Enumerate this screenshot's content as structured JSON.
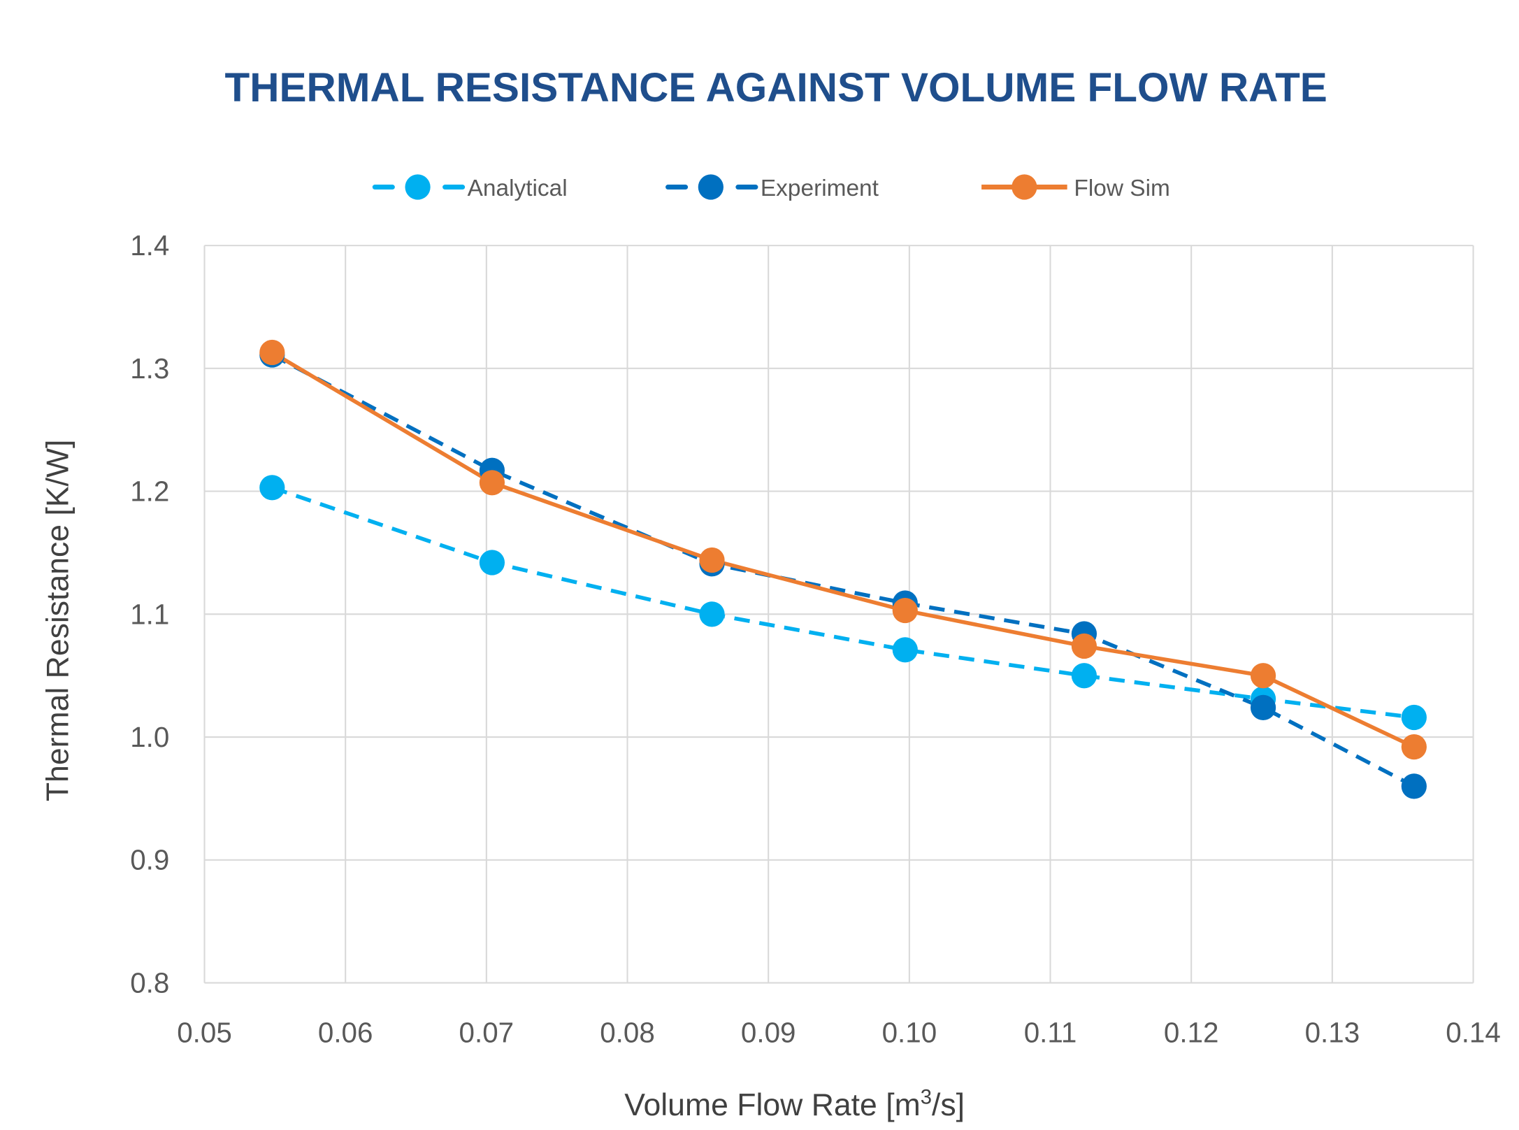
{
  "chart_data": {
    "type": "line",
    "title": "THERMAL RESISTANCE AGAINST VOLUME FLOW RATE",
    "xlabel": "Volume Flow Rate [m³/s]",
    "xlabel_parts": {
      "before": "Volume Flow Rate [m",
      "sup": "3",
      "after": "/s]"
    },
    "ylabel": "Thermal Resistance [K/W]",
    "xlim": [
      0.05,
      0.14
    ],
    "ylim": [
      0.8,
      1.4
    ],
    "xticks": [
      "0.05",
      "0.06",
      "0.07",
      "0.08",
      "0.09",
      "0.10",
      "0.11",
      "0.12",
      "0.13",
      "0.14"
    ],
    "yticks": [
      "0.8",
      "0.9",
      "1.0",
      "1.1",
      "1.2",
      "1.3",
      "1.4"
    ],
    "grid": true,
    "legend_position": "top",
    "x": [
      0.0548,
      0.0704,
      0.086,
      0.0997,
      0.1124,
      0.1251,
      0.1358
    ],
    "series": [
      {
        "name": "Analytical",
        "color": "#00B0F0",
        "dash": true,
        "values": [
          1.203,
          1.142,
          1.1,
          1.071,
          1.05,
          1.031,
          1.016
        ]
      },
      {
        "name": "Experiment",
        "color": "#0070C0",
        "dash": true,
        "values": [
          1.311,
          1.217,
          1.141,
          1.109,
          1.084,
          1.024,
          0.96
        ]
      },
      {
        "name": "Flow Sim",
        "color": "#ED7D31",
        "dash": false,
        "values": [
          1.313,
          1.207,
          1.144,
          1.103,
          1.074,
          1.05,
          0.992
        ]
      }
    ]
  }
}
